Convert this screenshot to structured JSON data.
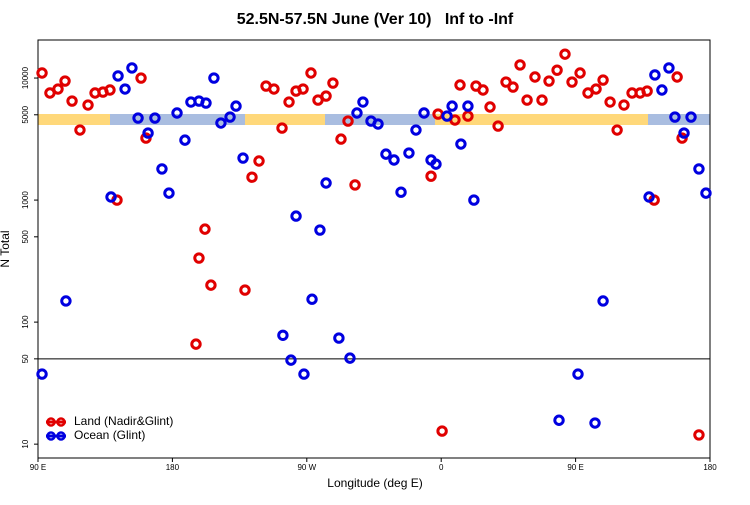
{
  "chart_data": {
    "type": "scatter",
    "title": "52.5N-57.5N June (Ver 10)   Inf to -Inf",
    "x_label": "Longitude (deg E)",
    "y_label": "N Total",
    "xlim": [
      -270,
      180
    ],
    "xticks": [
      {
        "value": -270,
        "label": "90 E"
      },
      {
        "value": -180,
        "label": "180"
      },
      {
        "value": -90,
        "label": "90 W"
      },
      0,
      {
        "value": 90,
        "label": "90 E"
      },
      180
    ],
    "ylim": [
      7.7,
      20500
    ],
    "yticks": [
      10,
      50,
      100,
      500,
      1000,
      5000,
      10000
    ],
    "log_y": true,
    "hline": 50,
    "legend": "lower left",
    "series": [
      {
        "name": "Land (Nadir&Glint)",
        "color": "#e00000",
        "x": [
          -267.3,
          -262.0,
          -256.6,
          -251.9,
          -247.2,
          -241.9,
          -236.5,
          -231.8,
          -226.5,
          -221.8,
          -217.1,
          -201.0,
          -197.7,
          -164.2,
          -162.2,
          -158.2,
          -154.2,
          -131.4,
          -126.7,
          -122.0,
          -117.3,
          -112.0,
          -106.6,
          -101.9,
          -97.2,
          -92.5,
          -87.2,
          -82.5,
          -77.1,
          -72.5,
          -67.1,
          -62.4,
          -57.7,
          -6.8,
          -2.1,
          0.6,
          9.2,
          12.6,
          17.9,
          23.3,
          28.0,
          32.7,
          38.1,
          43.4,
          48.1,
          52.8,
          57.5,
          62.8,
          67.5,
          72.2,
          77.6,
          82.9,
          87.6,
          93.0,
          98.3,
          103.7,
          108.4,
          113.1,
          117.8,
          122.4,
          127.8,
          133.2,
          137.9,
          142.6,
          158.0,
          161.3,
          172.6
        ],
        "values": [
          11000,
          7540,
          8130,
          9450,
          6480,
          3750,
          6010,
          7540,
          7680,
          7980,
          1000,
          10000,
          3220,
          66,
          335,
          578,
          201,
          183,
          1540,
          2090,
          8600,
          8130,
          3890,
          6360,
          7820,
          8130,
          11000,
          6600,
          7120,
          9100,
          3160,
          4440,
          1330,
          1570,
          5070,
          12.8,
          4530,
          8770,
          4880,
          8600,
          7980,
          5790,
          4040,
          9270,
          8440,
          12800,
          6600,
          10200,
          6600,
          9450,
          11600,
          15700,
          9270,
          11000,
          7540,
          8130,
          9630,
          6360,
          3750,
          6010,
          7540,
          7540,
          7820,
          1000,
          10200,
          3220,
          11.9
        ]
      },
      {
        "name": "Ocean (Glint)",
        "color": "#0000e0",
        "x": [
          -267.3,
          -251.3,
          -221.1,
          -216.4,
          -211.7,
          -207.1,
          -203.0,
          -196.3,
          -191.7,
          -187.0,
          -182.3,
          -176.9,
          -171.6,
          -167.6,
          -162.2,
          -157.5,
          -152.2,
          -147.5,
          -141.4,
          -137.4,
          -132.7,
          -106.0,
          -100.6,
          -97.2,
          -91.9,
          -86.5,
          -81.2,
          -77.1,
          -68.5,
          -61.1,
          -56.4,
          -52.4,
          -47.0,
          -42.3,
          -37.0,
          -31.6,
          -26.9,
          -21.6,
          -16.9,
          -11.5,
          -6.8,
          -3.5,
          3.9,
          7.3,
          13.2,
          17.9,
          21.9,
          78.9,
          91.6,
          103.0,
          108.4,
          139.2,
          143.1,
          147.8,
          152.5,
          156.5,
          162.6,
          167.3,
          172.6,
          177.3
        ],
        "values": [
          37.5,
          149,
          1060,
          10400,
          8130,
          12100,
          4700,
          3540,
          4700,
          1800,
          1140,
          5170,
          3100,
          6360,
          6480,
          6240,
          10000,
          4280,
          4790,
          5890,
          2210,
          78,
          48.8,
          739,
          37.5,
          154,
          568,
          1380,
          74,
          50.7,
          5170,
          6360,
          4440,
          4200,
          2380,
          2130,
          1160,
          2430,
          3750,
          5170,
          2130,
          1970,
          4880,
          5890,
          2880,
          5890,
          1000,
          15.7,
          37.5,
          14.9,
          149,
          1060,
          10600,
          7980,
          12100,
          4790,
          3540,
          4790,
          1800,
          1140
        ]
      }
    ]
  }
}
